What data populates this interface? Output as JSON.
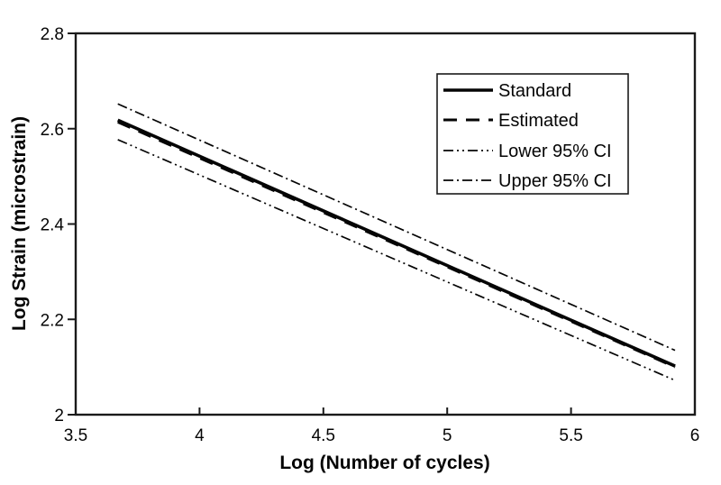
{
  "chart_data": {
    "type": "line",
    "title": "",
    "xlabel": "Log (Number of cycles)",
    "ylabel": "Log Strain (microstrain)",
    "xlim": [
      3.5,
      6
    ],
    "ylim": [
      2,
      2.8
    ],
    "x_ticks": [
      3.5,
      4,
      4.5,
      5,
      5.5,
      6
    ],
    "x_tick_labels": [
      "3.5",
      "4",
      "4.5",
      "5",
      "5.5",
      "6"
    ],
    "y_ticks": [
      2,
      2.2,
      2.4,
      2.6,
      2.8
    ],
    "y_tick_labels": [
      "2",
      "2.2",
      "2.4",
      "2.6",
      "2.8"
    ],
    "grid": false,
    "legend_position": "upper right",
    "background_color": "#ffffff",
    "axis_color": "#1a1a1a",
    "series": [
      {
        "name": "Standard",
        "line_style": "solid",
        "line_width": 3.6,
        "color": "#050505",
        "x": [
          3.67,
          5.92
        ],
        "y": [
          2.618,
          2.102
        ]
      },
      {
        "name": "Estimated",
        "line_style": "dashed",
        "line_width": 3,
        "color": "#050505",
        "x": [
          3.67,
          5.92
        ],
        "y": [
          2.614,
          2.1
        ]
      },
      {
        "name": "Lower 95% CI",
        "line_style": "dash-dot-dot",
        "line_width": 1.7,
        "color": "#050505",
        "x": [
          3.67,
          5.92
        ],
        "y": [
          2.577,
          2.072
        ]
      },
      {
        "name": "Upper 95% CI",
        "line_style": "dash-dot",
        "line_width": 1.7,
        "color": "#050505",
        "x": [
          3.67,
          5.92
        ],
        "y": [
          2.652,
          2.135
        ]
      }
    ]
  }
}
